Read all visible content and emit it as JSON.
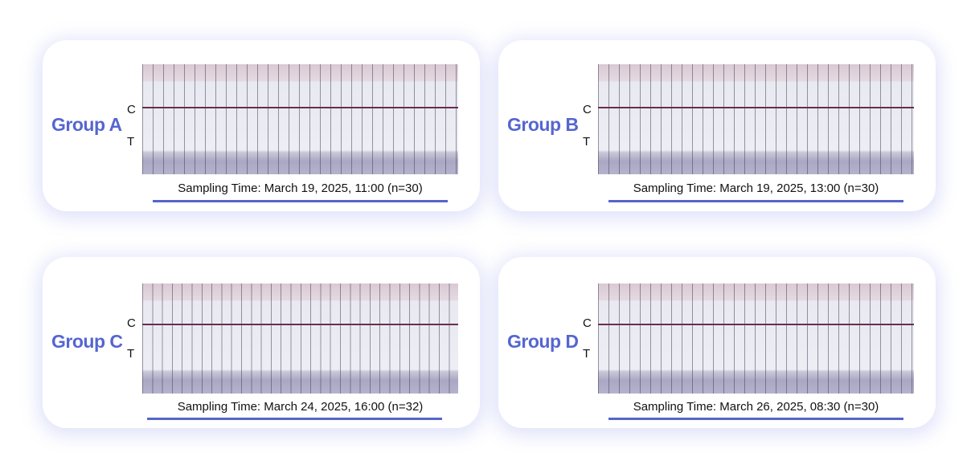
{
  "accent_color": "#5566d0",
  "line_labels": {
    "control": "C",
    "test": "T"
  },
  "groups": [
    {
      "name": "Group A",
      "caption": "Sampling Time: March 19, 2025, 11:00 (n=30)"
    },
    {
      "name": "Group B",
      "caption": "Sampling Time: March 19, 2025, 13:00 (n=30)"
    },
    {
      "name": "Group C",
      "caption": "Sampling Time: March 24, 2025, 16:00 (n=32)"
    },
    {
      "name": "Group D",
      "caption": "Sampling Time: March 26, 2025, 08:30 (n=30)"
    }
  ]
}
